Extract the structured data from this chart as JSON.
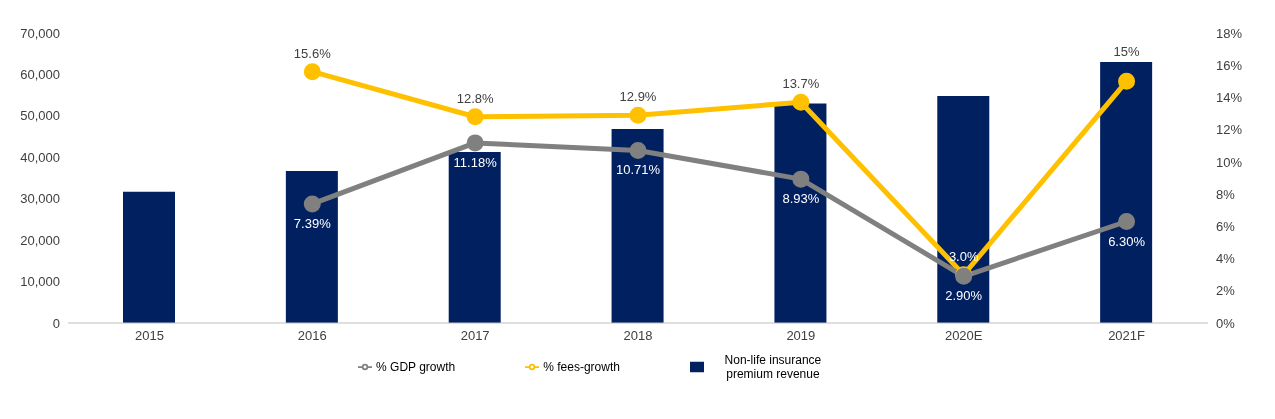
{
  "chart_data": {
    "type": "bar",
    "categories": [
      "2015",
      "2016",
      "2017",
      "2018",
      "2019",
      "2020E",
      "2021F"
    ],
    "series": [
      {
        "name": "Non-life insurance premium revenue",
        "color": "#002060",
        "values": [
          31700,
          36700,
          41300,
          46800,
          53000,
          54800,
          63000
        ]
      },
      {
        "name": "% fees-growth",
        "type": "line",
        "axis": "y2",
        "color": "#ffc000",
        "values": [
          null,
          15.6,
          12.8,
          12.9,
          13.7,
          3.0,
          15
        ],
        "value_labels": [
          null,
          "15.6%",
          "12.8%",
          "12.9%",
          "13.7%",
          "3.0%",
          "15%"
        ]
      },
      {
        "name": "% GDP growth",
        "type": "line",
        "axis": "y2",
        "color": "#808080",
        "values": [
          null,
          7.39,
          11.18,
          10.71,
          8.93,
          2.9,
          6.3
        ],
        "value_labels": [
          null,
          "7.39%",
          "11.18%",
          "10.71%",
          "8.93%",
          "2.90%",
          "6.30%"
        ]
      }
    ],
    "ylim": [
      0,
      70000
    ],
    "yticks": [
      {
        "value": 0,
        "label": "0"
      },
      {
        "value": 10000,
        "label": "10,000"
      },
      {
        "value": 20000,
        "label": "20,000"
      },
      {
        "value": 30000,
        "label": "30,000"
      },
      {
        "value": 40000,
        "label": "40,000"
      },
      {
        "value": 50000,
        "label": "50,000"
      },
      {
        "value": 60000,
        "label": "60,000"
      },
      {
        "value": 70000,
        "label": "70,000"
      }
    ],
    "y2lim": [
      0,
      18
    ],
    "y2ticks": [
      {
        "value": 0,
        "label": "0%"
      },
      {
        "value": 2,
        "label": "2%"
      },
      {
        "value": 4,
        "label": "4%"
      },
      {
        "value": 6,
        "label": "6%"
      },
      {
        "value": 8,
        "label": "8%"
      },
      {
        "value": 10,
        "label": "10%"
      },
      {
        "value": 12,
        "label": "12%"
      },
      {
        "value": 14,
        "label": "14%"
      },
      {
        "value": 16,
        "label": "16%"
      },
      {
        "value": 18,
        "label": "18%"
      }
    ],
    "grid": false,
    "legend": "bottom",
    "marker": "circle",
    "line_style": "solid"
  }
}
